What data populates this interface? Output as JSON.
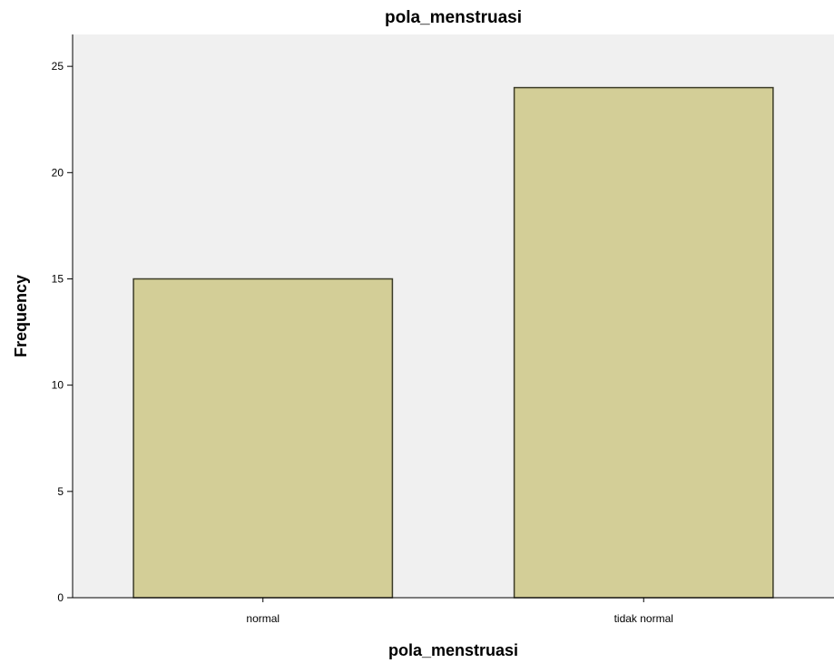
{
  "chart_data": {
    "type": "bar",
    "title": "pola_menstruasi",
    "xlabel": "pola_menstruasi",
    "ylabel": "Frequency",
    "categories": [
      "normal",
      "tidak normal"
    ],
    "values": [
      15,
      24
    ],
    "ylim": [
      0,
      26.5
    ],
    "yticks": [
      0,
      5,
      10,
      15,
      20,
      25
    ],
    "grid": false,
    "colors": {
      "plot_background": "#f0f0f0",
      "bar_fill": "#d3ce97",
      "bar_stroke": "#3c3c28",
      "axis": "#000000"
    }
  }
}
